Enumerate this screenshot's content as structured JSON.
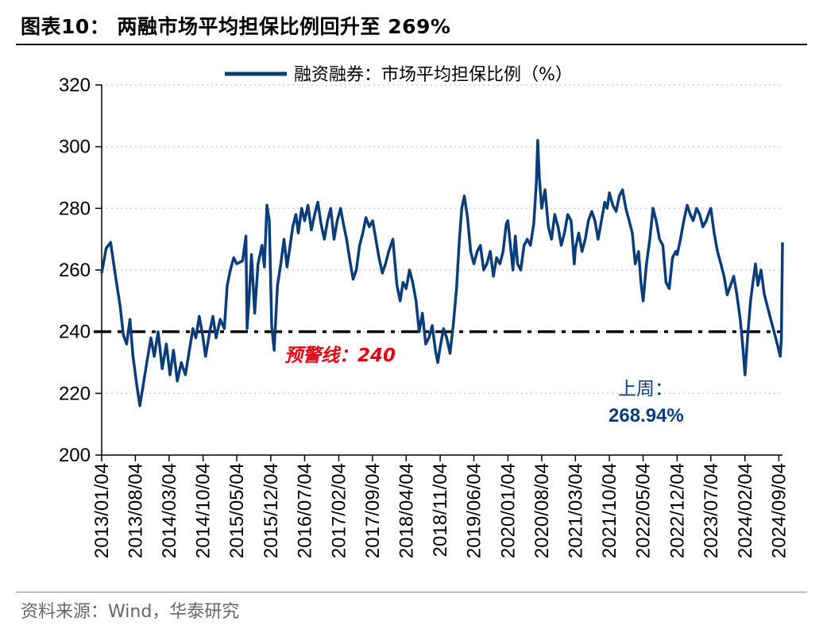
{
  "header": {
    "title": "图表10：  两融市场平均担保比例回升至 269%"
  },
  "footer": {
    "source": "资料来源：Wind，华泰研究"
  },
  "colors": {
    "series": "#0a3d7a",
    "threshold": "#000000",
    "warning_text": "#e60012",
    "grid": "#d0d0d0"
  },
  "chart_data": {
    "type": "line",
    "title": "",
    "xlabel": "",
    "ylabel": "",
    "ylim": [
      200,
      320
    ],
    "yticks": [
      200,
      220,
      240,
      260,
      280,
      300,
      320
    ],
    "xlim": [
      "2013-01-04",
      "2024-09-27"
    ],
    "xticks": [
      "2013/01/04",
      "2013/08/04",
      "2014/03/04",
      "2014/10/04",
      "2015/05/04",
      "2015/12/04",
      "2016/07/04",
      "2017/02/04",
      "2017/09/04",
      "2018/04/04",
      "2018/11/04",
      "2019/06/04",
      "2020/01/04",
      "2020/08/04",
      "2021/03/04",
      "2021/10/04",
      "2022/05/04",
      "2022/12/04",
      "2023/07/04",
      "2024/02/04",
      "2024/09/04"
    ],
    "grid": "horizontal dotted",
    "legend_position": "top-center",
    "series": [
      {
        "name": "融资融券：市场平均担保比例（%）",
        "points": [
          [
            "2013-01-04",
            259
          ],
          [
            "2013-02-01",
            267
          ],
          [
            "2013-03-01",
            269
          ],
          [
            "2013-04-01",
            258
          ],
          [
            "2013-05-01",
            248
          ],
          [
            "2013-05-20",
            239
          ],
          [
            "2013-06-10",
            236
          ],
          [
            "2013-07-01",
            244
          ],
          [
            "2013-07-20",
            232
          ],
          [
            "2013-08-15",
            222
          ],
          [
            "2013-09-01",
            216
          ],
          [
            "2013-09-20",
            222
          ],
          [
            "2013-10-15",
            230
          ],
          [
            "2013-11-10",
            238
          ],
          [
            "2013-12-01",
            232
          ],
          [
            "2013-12-25",
            240
          ],
          [
            "2014-01-20",
            228
          ],
          [
            "2014-02-15",
            236
          ],
          [
            "2014-03-10",
            226
          ],
          [
            "2014-04-01",
            234
          ],
          [
            "2014-04-25",
            224
          ],
          [
            "2014-05-20",
            230
          ],
          [
            "2014-06-15",
            226
          ],
          [
            "2014-07-10",
            234
          ],
          [
            "2014-08-01",
            241
          ],
          [
            "2014-08-20",
            238
          ],
          [
            "2014-09-10",
            245
          ],
          [
            "2014-10-01",
            239
          ],
          [
            "2014-10-20",
            232
          ],
          [
            "2014-11-15",
            240
          ],
          [
            "2014-12-05",
            245
          ],
          [
            "2014-12-25",
            238
          ],
          [
            "2015-01-20",
            244
          ],
          [
            "2015-02-15",
            241
          ],
          [
            "2015-03-05",
            255
          ],
          [
            "2015-03-25",
            260
          ],
          [
            "2015-04-15",
            264
          ],
          [
            "2015-05-04",
            262
          ],
          [
            "2015-06-10",
            263
          ],
          [
            "2015-07-01",
            271
          ],
          [
            "2015-07-08",
            241
          ],
          [
            "2015-07-20",
            250
          ],
          [
            "2015-08-05",
            265
          ],
          [
            "2015-08-25",
            246
          ],
          [
            "2015-09-15",
            262
          ],
          [
            "2015-10-10",
            268
          ],
          [
            "2015-10-25",
            261
          ],
          [
            "2015-11-10",
            281
          ],
          [
            "2015-11-25",
            276
          ],
          [
            "2015-12-10",
            242
          ],
          [
            "2015-12-25",
            234
          ],
          [
            "2016-01-15",
            255
          ],
          [
            "2016-02-05",
            262
          ],
          [
            "2016-02-25",
            270
          ],
          [
            "2016-03-15",
            261
          ],
          [
            "2016-04-01",
            267
          ],
          [
            "2016-04-20",
            274
          ],
          [
            "2016-05-10",
            278
          ],
          [
            "2016-05-25",
            272
          ],
          [
            "2016-06-15",
            280
          ],
          [
            "2016-07-04",
            276
          ],
          [
            "2016-07-25",
            281
          ],
          [
            "2016-08-15",
            273
          ],
          [
            "2016-09-05",
            278
          ],
          [
            "2016-09-25",
            282
          ],
          [
            "2016-10-15",
            275
          ],
          [
            "2016-11-05",
            270
          ],
          [
            "2016-11-25",
            276
          ],
          [
            "2016-12-15",
            280
          ],
          [
            "2017-01-05",
            270
          ],
          [
            "2017-01-25",
            276
          ],
          [
            "2017-02-15",
            280
          ],
          [
            "2017-03-05",
            275
          ],
          [
            "2017-03-25",
            270
          ],
          [
            "2017-04-15",
            263
          ],
          [
            "2017-05-05",
            257
          ],
          [
            "2017-05-25",
            260
          ],
          [
            "2017-06-15",
            268
          ],
          [
            "2017-07-05",
            272
          ],
          [
            "2017-07-25",
            277
          ],
          [
            "2017-08-15",
            274
          ],
          [
            "2017-09-05",
            276
          ],
          [
            "2017-09-25",
            270
          ],
          [
            "2017-10-15",
            264
          ],
          [
            "2017-11-05",
            259
          ],
          [
            "2017-11-25",
            262
          ],
          [
            "2017-12-15",
            266
          ],
          [
            "2018-01-10",
            270
          ],
          [
            "2018-02-05",
            255
          ],
          [
            "2018-02-25",
            250
          ],
          [
            "2018-03-15",
            256
          ],
          [
            "2018-04-04",
            254
          ],
          [
            "2018-04-25",
            260
          ],
          [
            "2018-05-15",
            256
          ],
          [
            "2018-06-05",
            250
          ],
          [
            "2018-06-25",
            240
          ],
          [
            "2018-07-15",
            246
          ],
          [
            "2018-08-05",
            236
          ],
          [
            "2018-08-25",
            238
          ],
          [
            "2018-09-15",
            242
          ],
          [
            "2018-10-05",
            234
          ],
          [
            "2018-10-20",
            230
          ],
          [
            "2018-11-04",
            235
          ],
          [
            "2018-11-25",
            241
          ],
          [
            "2018-12-15",
            238
          ],
          [
            "2019-01-05",
            233
          ],
          [
            "2019-01-25",
            242
          ],
          [
            "2019-02-15",
            254
          ],
          [
            "2019-03-05",
            270
          ],
          [
            "2019-03-20",
            280
          ],
          [
            "2019-04-05",
            284
          ],
          [
            "2019-04-25",
            277
          ],
          [
            "2019-05-15",
            266
          ],
          [
            "2019-06-04",
            262
          ],
          [
            "2019-06-25",
            266
          ],
          [
            "2019-07-15",
            268
          ],
          [
            "2019-08-05",
            260
          ],
          [
            "2019-08-25",
            262
          ],
          [
            "2019-09-15",
            266
          ],
          [
            "2019-10-05",
            258
          ],
          [
            "2019-10-25",
            264
          ],
          [
            "2019-11-15",
            262
          ],
          [
            "2019-12-05",
            266
          ],
          [
            "2019-12-25",
            275
          ],
          [
            "2020-01-04",
            276
          ],
          [
            "2020-01-20",
            268
          ],
          [
            "2020-02-05",
            260
          ],
          [
            "2020-02-20",
            271
          ],
          [
            "2020-03-05",
            262
          ],
          [
            "2020-03-25",
            260
          ],
          [
            "2020-04-15",
            268
          ],
          [
            "2020-05-05",
            270
          ],
          [
            "2020-05-25",
            268
          ],
          [
            "2020-06-15",
            275
          ],
          [
            "2020-07-01",
            288
          ],
          [
            "2020-07-10",
            302
          ],
          [
            "2020-07-20",
            290
          ],
          [
            "2020-08-04",
            280
          ],
          [
            "2020-08-25",
            286
          ],
          [
            "2020-09-15",
            274
          ],
          [
            "2020-10-05",
            270
          ],
          [
            "2020-10-25",
            278
          ],
          [
            "2020-11-15",
            274
          ],
          [
            "2020-12-05",
            268
          ],
          [
            "2020-12-25",
            272
          ],
          [
            "2021-01-15",
            278
          ],
          [
            "2021-02-05",
            276
          ],
          [
            "2021-02-25",
            262
          ],
          [
            "2021-03-04",
            267
          ],
          [
            "2021-03-25",
            272
          ],
          [
            "2021-04-15",
            266
          ],
          [
            "2021-05-05",
            270
          ],
          [
            "2021-05-25",
            276
          ],
          [
            "2021-06-15",
            279
          ],
          [
            "2021-07-05",
            276
          ],
          [
            "2021-07-25",
            270
          ],
          [
            "2021-08-15",
            276
          ],
          [
            "2021-09-05",
            282
          ],
          [
            "2021-09-20",
            280
          ],
          [
            "2021-10-04",
            285
          ],
          [
            "2021-10-25",
            281
          ],
          [
            "2021-11-15",
            279
          ],
          [
            "2021-12-05",
            284
          ],
          [
            "2021-12-25",
            286
          ],
          [
            "2022-01-15",
            280
          ],
          [
            "2022-02-05",
            276
          ],
          [
            "2022-02-25",
            272
          ],
          [
            "2022-03-15",
            262
          ],
          [
            "2022-04-05",
            266
          ],
          [
            "2022-04-20",
            256
          ],
          [
            "2022-05-04",
            250
          ],
          [
            "2022-05-25",
            262
          ],
          [
            "2022-06-15",
            270
          ],
          [
            "2022-07-05",
            280
          ],
          [
            "2022-07-25",
            276
          ],
          [
            "2022-08-15",
            270
          ],
          [
            "2022-09-05",
            268
          ],
          [
            "2022-09-25",
            256
          ],
          [
            "2022-10-15",
            254
          ],
          [
            "2022-11-05",
            264
          ],
          [
            "2022-11-25",
            266
          ],
          [
            "2022-12-04",
            265
          ],
          [
            "2022-12-25",
            270
          ],
          [
            "2023-01-15",
            276
          ],
          [
            "2023-02-05",
            281
          ],
          [
            "2023-02-25",
            278
          ],
          [
            "2023-03-15",
            276
          ],
          [
            "2023-04-05",
            280
          ],
          [
            "2023-04-25",
            278
          ],
          [
            "2023-05-15",
            274
          ],
          [
            "2023-06-05",
            276
          ],
          [
            "2023-06-25",
            279
          ],
          [
            "2023-07-04",
            280
          ],
          [
            "2023-07-25",
            272
          ],
          [
            "2023-08-15",
            266
          ],
          [
            "2023-09-05",
            262
          ],
          [
            "2023-09-25",
            258
          ],
          [
            "2023-10-15",
            252
          ],
          [
            "2023-11-05",
            255
          ],
          [
            "2023-11-25",
            258
          ],
          [
            "2023-12-15",
            252
          ],
          [
            "2024-01-05",
            244
          ],
          [
            "2024-01-20",
            236
          ],
          [
            "2024-02-04",
            226
          ],
          [
            "2024-02-20",
            238
          ],
          [
            "2024-03-10",
            250
          ],
          [
            "2024-03-25",
            256
          ],
          [
            "2024-04-10",
            262
          ],
          [
            "2024-04-25",
            255
          ],
          [
            "2024-05-15",
            260
          ],
          [
            "2024-06-05",
            252
          ],
          [
            "2024-06-25",
            248
          ],
          [
            "2024-07-15",
            244
          ],
          [
            "2024-08-05",
            240
          ],
          [
            "2024-08-25",
            236
          ],
          [
            "2024-09-13",
            232
          ],
          [
            "2024-09-20",
            238
          ],
          [
            "2024-09-27",
            268.94
          ]
        ]
      }
    ],
    "reference_lines": [
      {
        "y": 240,
        "style": "dash-dot",
        "label": "预警线：240"
      }
    ],
    "annotations": [
      {
        "label": "上周：",
        "value_label": "268.94%"
      }
    ]
  }
}
